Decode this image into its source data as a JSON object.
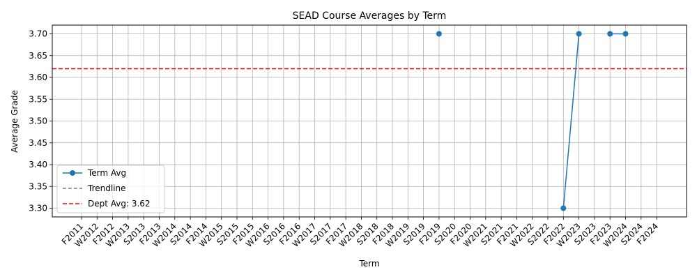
{
  "chart_data": {
    "type": "line",
    "title": "SEAD Course Averages by Term",
    "xlabel": "Term",
    "ylabel": "Average Grade",
    "ylim": [
      3.28,
      3.72
    ],
    "yticks": [
      "3.30",
      "3.35",
      "3.40",
      "3.45",
      "3.50",
      "3.55",
      "3.60",
      "3.65",
      "3.70"
    ],
    "categories": [
      "F2011",
      "W2012",
      "F2012",
      "W2013",
      "S2013",
      "F2013",
      "W2014",
      "S2014",
      "F2014",
      "W2015",
      "S2015",
      "F2015",
      "W2016",
      "S2016",
      "F2016",
      "W2017",
      "S2017",
      "F2017",
      "W2018",
      "S2018",
      "F2018",
      "W2019",
      "S2019",
      "F2019",
      "S2020",
      "F2020",
      "W2021",
      "S2021",
      "F2021",
      "W2022",
      "S2022",
      "F2022",
      "W2023",
      "S2023",
      "F2023",
      "W2024",
      "S2024",
      "F2024"
    ],
    "grid": true,
    "legend_position": "lower-left",
    "series": [
      {
        "name": "Term Avg",
        "color": "#1f77b4",
        "marker": "circle",
        "values": [
          null,
          null,
          null,
          null,
          null,
          null,
          null,
          null,
          null,
          null,
          null,
          null,
          null,
          null,
          null,
          null,
          null,
          null,
          null,
          null,
          null,
          null,
          null,
          3.7,
          null,
          null,
          null,
          null,
          null,
          null,
          null,
          3.3,
          3.7,
          null,
          3.7,
          3.7,
          null,
          null
        ]
      }
    ],
    "trendline": {
      "name": "Trendline",
      "color": "#808080"
    },
    "reference_line": {
      "name": "Dept Avg: 3.62",
      "value": 3.62,
      "color": "#ff0000"
    }
  }
}
